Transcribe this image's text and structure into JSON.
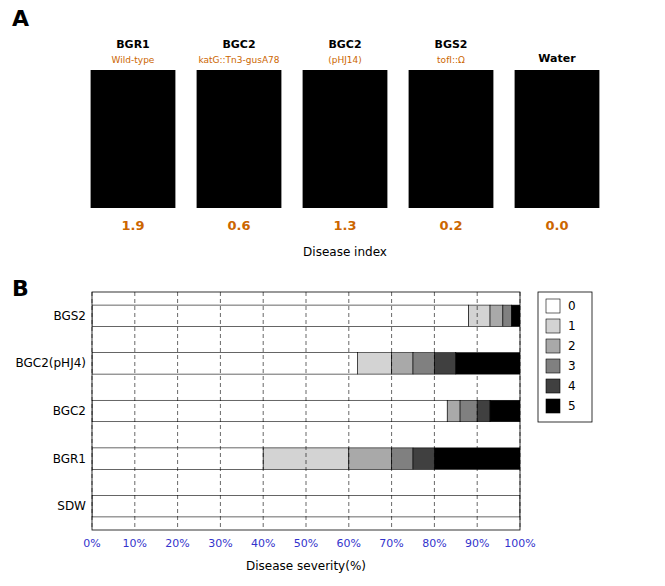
{
  "chart_data": [
    {
      "type": "image_panel",
      "title": "A",
      "categories": [
        "BGR1\nWild-type",
        "BGC2\nkatG::Tn3-gusA78",
        "BGC2\n(pHJ14)",
        "BGS2\ntofI::Ω",
        "Water"
      ],
      "values": [
        1.9,
        0.6,
        1.3,
        0.2,
        0
      ],
      "value_labels": [
        "1.9",
        "0.6",
        "1.3",
        "0.2",
        "0.0"
      ],
      "data_labels": true,
      "xlabel": "Disease index"
    },
    {
      "type": "bar",
      "title": "B",
      "orientation": "horizontal",
      "stacked": true,
      "categories": [
        "SDW",
        "BGR1",
        "BGC2",
        "BGC2(pHJ4)",
        "BGS2"
      ],
      "series": [
        {
          "name": "0",
          "color": "#ffffff",
          "values": [
            100,
            40,
            83,
            62,
            88
          ]
        },
        {
          "name": "1",
          "color": "#d3d3d3",
          "values": [
            0,
            20,
            0,
            8,
            5
          ]
        },
        {
          "name": "2",
          "color": "#a9a9a9",
          "values": [
            0,
            10,
            3,
            5,
            3
          ]
        },
        {
          "name": "3",
          "color": "#808080",
          "values": [
            0,
            5,
            4,
            5,
            2
          ]
        },
        {
          "name": "4",
          "color": "#404040",
          "values": [
            0,
            5,
            3,
            5,
            0
          ]
        },
        {
          "name": "5",
          "color": "#000000",
          "values": [
            0,
            20,
            7,
            15,
            2
          ]
        }
      ],
      "xlabel": "Disease severity(%)",
      "xlim": [
        0,
        100
      ],
      "xticks": [
        {
          "value": 0,
          "label": "0%"
        },
        {
          "value": 10,
          "label": "10%"
        },
        {
          "value": 20,
          "label": "20%"
        },
        {
          "value": 30,
          "label": "30%"
        },
        {
          "value": 40,
          "label": "40%"
        },
        {
          "value": 50,
          "label": "50%"
        },
        {
          "value": 60,
          "label": "60%"
        },
        {
          "value": 70,
          "label": "70%"
        },
        {
          "value": 80,
          "label": "80%"
        },
        {
          "value": 90,
          "label": "90%"
        },
        {
          "value": 100,
          "label": "100%"
        }
      ],
      "grid": true,
      "legend": "right"
    }
  ]
}
